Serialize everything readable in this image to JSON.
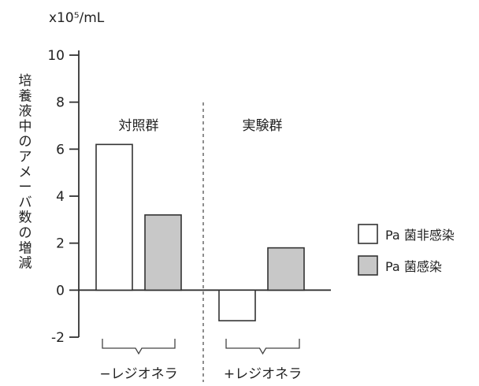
{
  "chart_data": {
    "type": "bar",
    "unit_label": "x10⁵/mL",
    "ylabel": "培養液中のアメーバ数の増減",
    "ylim": [
      -2,
      10
    ],
    "yticks": [
      -2,
      0,
      2,
      4,
      6,
      8,
      10
    ],
    "categories": [
      "−レジオネラ",
      "+レジオネラ"
    ],
    "group_titles": [
      "対照群",
      "実験群"
    ],
    "series": [
      {
        "name": "Pa 菌非感染",
        "color": "#ffffff",
        "values": [
          6.2,
          -1.3
        ]
      },
      {
        "name": "Pa 菌感染",
        "color": "#c8c8c8",
        "values": [
          3.2,
          1.8
        ]
      }
    ],
    "divider": "dashed",
    "legend_position": "right",
    "grid": false
  }
}
